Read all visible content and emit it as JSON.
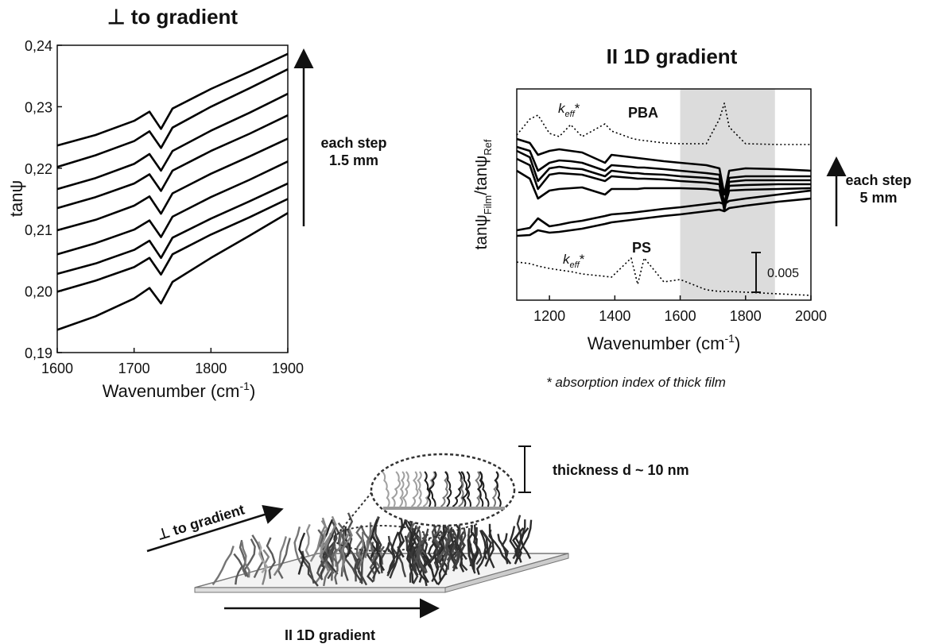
{
  "chart_data": [
    {
      "type": "line",
      "title": "⊥ to gradient",
      "xlabel": {
        "text": "Wavenumber (cm",
        "sup": "-1",
        "end": ")"
      },
      "ylabel": "tanψ",
      "xlim": [
        1600,
        1900
      ],
      "xticks": [
        1600,
        1700,
        1800,
        1900
      ],
      "ylim": [
        0.19,
        0.24
      ],
      "yticks": [
        {
          "value": 0.19,
          "label": "0,19"
        },
        {
          "value": 0.2,
          "label": "0,20"
        },
        {
          "value": 0.21,
          "label": "0,21"
        },
        {
          "value": 0.22,
          "label": "0,22"
        },
        {
          "value": 0.23,
          "label": "0,23"
        },
        {
          "value": 0.24,
          "label": "0,24"
        }
      ],
      "grid": false,
      "step_note": [
        "each step",
        "1.5 mm"
      ],
      "x": [
        1600,
        1650,
        1700,
        1720,
        1735,
        1750,
        1800,
        1850,
        1900
      ],
      "series": [
        {
          "color": "#000000",
          "values": [
            0.2237,
            0.2254,
            0.2277,
            0.2292,
            0.2264,
            0.2297,
            0.2329,
            0.2357,
            0.2386
          ]
        },
        {
          "color": "#000000",
          "values": [
            0.2202,
            0.2221,
            0.2244,
            0.226,
            0.2233,
            0.2266,
            0.23,
            0.233,
            0.2361
          ]
        },
        {
          "color": "#000000",
          "values": [
            0.2166,
            0.2184,
            0.2207,
            0.2223,
            0.2196,
            0.2228,
            0.2261,
            0.229,
            0.2321
          ]
        },
        {
          "color": "#000000",
          "values": [
            0.2135,
            0.2153,
            0.2175,
            0.219,
            0.2163,
            0.2196,
            0.2228,
            0.2256,
            0.2286
          ]
        },
        {
          "color": "#000000",
          "values": [
            0.2099,
            0.2116,
            0.2139,
            0.2154,
            0.2126,
            0.2159,
            0.2191,
            0.2219,
            0.2248
          ]
        },
        {
          "color": "#000000",
          "values": [
            0.206,
            0.2078,
            0.21,
            0.2115,
            0.2088,
            0.2121,
            0.2153,
            0.2181,
            0.2211
          ]
        },
        {
          "color": "#000000",
          "values": [
            0.2028,
            0.2045,
            0.2067,
            0.2082,
            0.2054,
            0.2087,
            0.2118,
            0.2146,
            0.2175
          ]
        },
        {
          "color": "#000000",
          "values": [
            0.1999,
            0.2017,
            0.2039,
            0.2054,
            0.2027,
            0.206,
            0.2092,
            0.212,
            0.215
          ]
        },
        {
          "color": "#000000",
          "values": [
            0.1937,
            0.1959,
            0.1988,
            0.2005,
            0.198,
            0.2015,
            0.2054,
            0.209,
            0.2127
          ]
        }
      ]
    },
    {
      "type": "line",
      "title": "II 1D gradient",
      "xlabel": {
        "text": "Wavenumber (cm",
        "sup": "-1",
        "end": ")"
      },
      "ylabel": {
        "main": "tanψ",
        "sub": "Film",
        "mid": "/tanψ",
        "sub2": "Ref"
      },
      "xlim": [
        1100,
        2000
      ],
      "xticks": [
        1200,
        1400,
        1600,
        1800,
        2000
      ],
      "ylim": [
        0,
        0.0266
      ],
      "grid": false,
      "shaded_range": [
        1600,
        1890
      ],
      "shade_color": "#dcdcdc",
      "scale_bar": 0.005,
      "pba_label": "PBA",
      "ps_label": "PS",
      "keff_labels": [
        {
          "symbol": "k",
          "subscript": "eff",
          "suffix": "*"
        },
        {
          "symbol": "k",
          "subscript": "eff",
          "suffix": "*"
        }
      ],
      "step_note": [
        "each step",
        "5 mm"
      ],
      "footnote": "* absorption index of thick film",
      "x": [
        1100,
        1140,
        1165,
        1200,
        1230,
        1265,
        1300,
        1370,
        1390,
        1450,
        1470,
        1490,
        1550,
        1600,
        1680,
        1720,
        1735,
        1750,
        1800,
        1900,
        2000
      ],
      "series": [
        {
          "color": "#000000",
          "dashed": true,
          "values": [
            0.0208,
            0.0228,
            0.0233,
            0.021,
            0.0206,
            0.0221,
            0.0206,
            0.0222,
            0.0213,
            0.0204,
            0.0202,
            0.0201,
            0.0198,
            0.0197,
            0.0197,
            0.0228,
            0.0248,
            0.0218,
            0.0197,
            0.0196,
            0.0196
          ]
        },
        {
          "color": "#000000",
          "values": [
            0.0203,
            0.0198,
            0.0183,
            0.0188,
            0.019,
            0.0188,
            0.0186,
            0.0173,
            0.0183,
            0.018,
            0.0179,
            0.0178,
            0.0175,
            0.0173,
            0.017,
            0.0166,
            0.0133,
            0.0163,
            0.0166,
            0.0165,
            0.0163
          ]
        },
        {
          "color": "#000000",
          "values": [
            0.0193,
            0.0188,
            0.0163,
            0.0173,
            0.0176,
            0.0175,
            0.0173,
            0.0163,
            0.017,
            0.0168,
            0.0167,
            0.0167,
            0.0165,
            0.0163,
            0.016,
            0.0158,
            0.012,
            0.0154,
            0.0156,
            0.0156,
            0.0156
          ]
        },
        {
          "color": "#000000",
          "values": [
            0.0188,
            0.018,
            0.015,
            0.0166,
            0.0168,
            0.0166,
            0.0165,
            0.0156,
            0.0163,
            0.016,
            0.016,
            0.0159,
            0.0158,
            0.0156,
            0.0154,
            0.0152,
            0.0116,
            0.0149,
            0.0151,
            0.0151,
            0.0151
          ]
        },
        {
          "color": "#000000",
          "values": [
            0.0178,
            0.017,
            0.014,
            0.0158,
            0.016,
            0.0159,
            0.0158,
            0.015,
            0.0156,
            0.0154,
            0.0153,
            0.0153,
            0.0152,
            0.015,
            0.0148,
            0.0146,
            0.0113,
            0.0144,
            0.0145,
            0.0146,
            0.0146
          ]
        },
        {
          "color": "#000000",
          "values": [
            0.0163,
            0.0153,
            0.0128,
            0.0138,
            0.014,
            0.0141,
            0.0142,
            0.0133,
            0.014,
            0.014,
            0.014,
            0.0141,
            0.0141,
            0.0141,
            0.014,
            0.0138,
            0.0116,
            0.0138,
            0.0139,
            0.014,
            0.0141
          ]
        },
        {
          "color": "#000000",
          "values": [
            0.0088,
            0.0091,
            0.0103,
            0.0093,
            0.0095,
            0.0098,
            0.01,
            0.0106,
            0.0108,
            0.011,
            0.0111,
            0.0112,
            0.0115,
            0.0117,
            0.0121,
            0.0123,
            0.0121,
            0.0125,
            0.0128,
            0.0133,
            0.0138
          ]
        },
        {
          "color": "#000000",
          "values": [
            0.0081,
            0.0082,
            0.0088,
            0.0085,
            0.0086,
            0.0088,
            0.009,
            0.0096,
            0.0098,
            0.0101,
            0.0102,
            0.0103,
            0.0106,
            0.0108,
            0.0112,
            0.0114,
            0.0112,
            0.0116,
            0.0119,
            0.0124,
            0.0128
          ]
        },
        {
          "color": "#000000",
          "dashed": true,
          "values": [
            0.0048,
            0.0046,
            0.0043,
            0.004,
            0.0038,
            0.0036,
            0.0033,
            0.003,
            0.0029,
            0.0053,
            0.002,
            0.0053,
            0.0023,
            0.0026,
            0.0013,
            0.0011,
            0.0011,
            0.0011,
            0.001,
            0.0008,
            0.0006
          ]
        }
      ]
    }
  ],
  "diagram": {
    "thickness": "thickness d ~ 10 nm",
    "perpendicular": "⊥ to gradient",
    "parallel": "II 1D gradient"
  }
}
